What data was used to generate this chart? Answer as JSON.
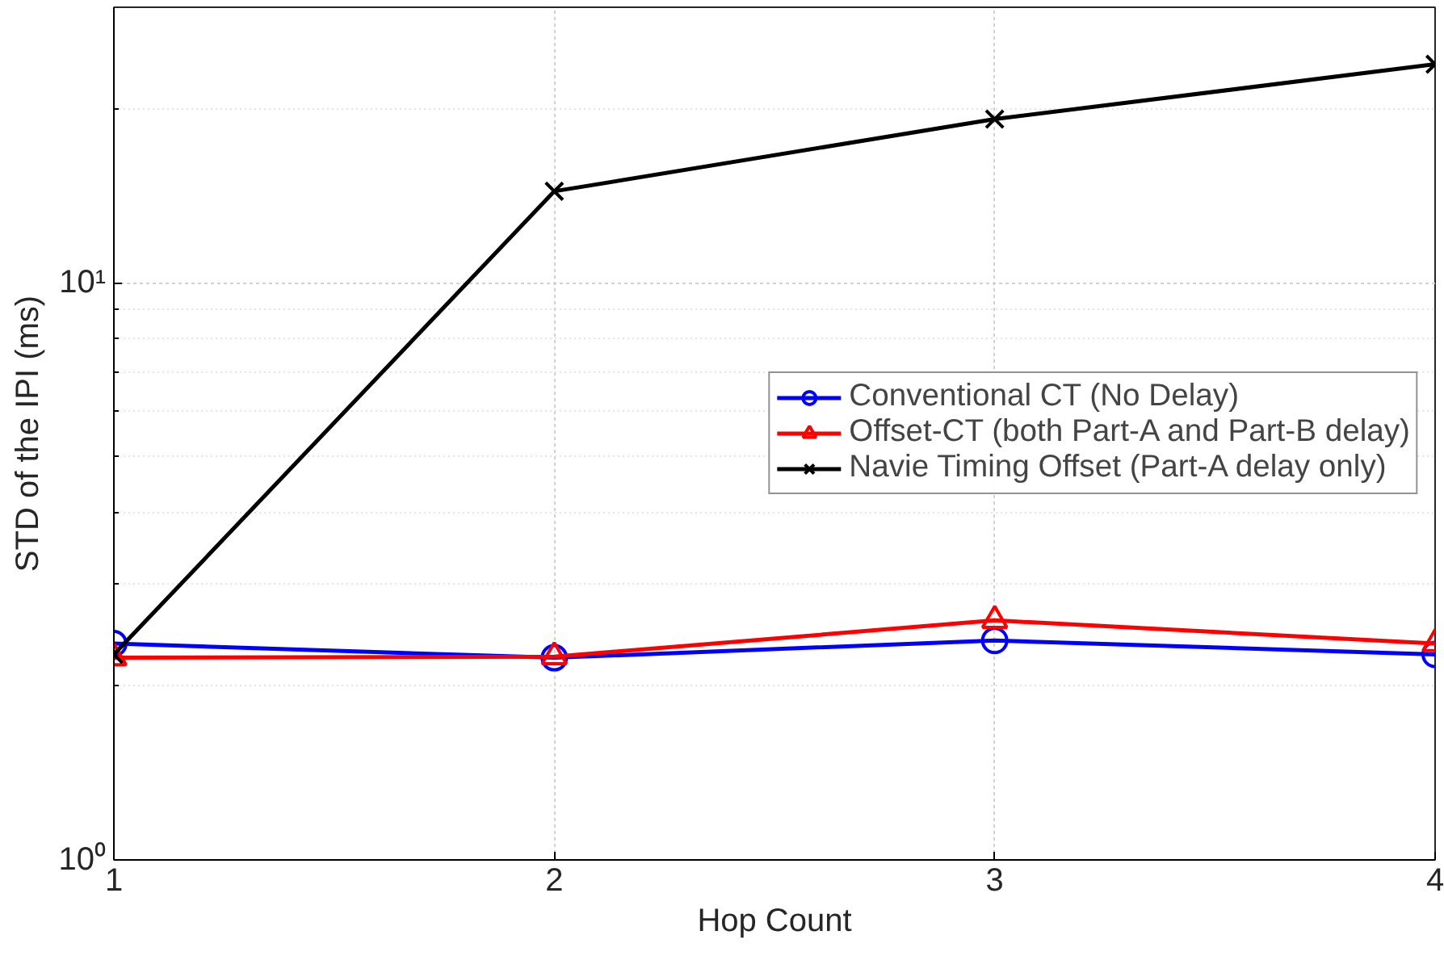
{
  "chart_data": {
    "type": "line",
    "xlabel": "Hop Count",
    "ylabel": "STD of the IPI (ms)",
    "x": [
      1,
      2,
      3,
      4
    ],
    "xlim": [
      1,
      4
    ],
    "xticks": [
      1,
      2,
      3,
      4
    ],
    "ylim": [
      1,
      30
    ],
    "yticks": [
      {
        "value": 1,
        "label": "10⁰"
      },
      {
        "value": 10,
        "label": "10¹"
      }
    ],
    "log": "y",
    "grid": true,
    "legend": "right",
    "line_style": "solid",
    "series": [
      {
        "name": "Conventional CT (No Delay)",
        "color": "#0000ff",
        "marker": "circle",
        "values": [
          2.37,
          2.24,
          2.4,
          2.27
        ]
      },
      {
        "name": "Offset-CT (both Part-A and Part-B delay)",
        "color": "#ff0000",
        "marker": "triangle",
        "values": [
          2.24,
          2.25,
          2.6,
          2.37
        ]
      },
      {
        "name": "Navie Timing Offset (Part-A delay only)",
        "color": "#000000",
        "marker": "cross",
        "values": [
          2.27,
          14.4,
          19.2,
          23.9
        ]
      }
    ]
  }
}
